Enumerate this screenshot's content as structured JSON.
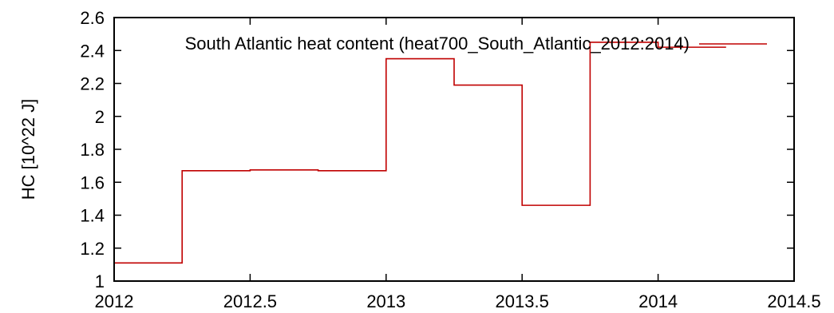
{
  "chart_data": {
    "type": "line",
    "title": "",
    "xlabel": "",
    "ylabel": "HC [10^22 J]",
    "xlim": [
      2012,
      2014.5
    ],
    "ylim": [
      1,
      2.6
    ],
    "x_ticks": [
      2012,
      2012.5,
      2013,
      2013.5,
      2014,
      2014.5
    ],
    "x_tick_labels": [
      "2012",
      "2012.5",
      "2013",
      "2013.5",
      "2014",
      "2014.5"
    ],
    "y_ticks": [
      1,
      1.2,
      1.4,
      1.6,
      1.8,
      2,
      2.2,
      2.4,
      2.6
    ],
    "y_tick_labels": [
      "1",
      "1.2",
      "1.4",
      "1.6",
      "1.8",
      "2",
      "2.2",
      "2.4",
      "2.6"
    ],
    "grid": false,
    "legend_position": "top-right",
    "series": [
      {
        "name": "South Atlantic heat content (heat700_South_Atlantic_2012:2014)",
        "color": "#c00000",
        "style": "steps",
        "steps": [
          {
            "x0": 2012.0,
            "x1": 2012.25,
            "y": 1.11
          },
          {
            "x0": 2012.25,
            "x1": 2012.5,
            "y": 1.67
          },
          {
            "x0": 2012.5,
            "x1": 2012.75,
            "y": 1.675
          },
          {
            "x0": 2012.75,
            "x1": 2013.0,
            "y": 1.67
          },
          {
            "x0": 2013.0,
            "x1": 2013.25,
            "y": 2.35
          },
          {
            "x0": 2013.25,
            "x1": 2013.5,
            "y": 2.19
          },
          {
            "x0": 2013.5,
            "x1": 2013.75,
            "y": 1.46
          },
          {
            "x0": 2013.75,
            "x1": 2014.0,
            "y": 2.45
          },
          {
            "x0": 2014.0,
            "x1": 2014.25,
            "y": 2.42
          }
        ]
      }
    ]
  }
}
